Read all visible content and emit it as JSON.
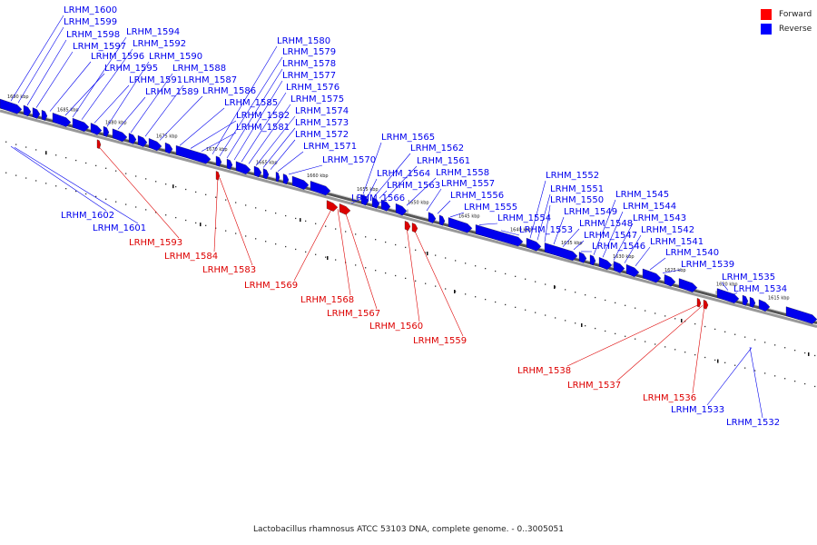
{
  "legend": [
    {
      "label": "Forward",
      "color": "#ff0000"
    },
    {
      "label": "Reverse",
      "color": "#0000ff"
    }
  ],
  "caption": "Lactobacillus rhamnosus ATCC 53103 DNA, complete genome. - 0..3005051",
  "colors": {
    "forward": "#dd0000",
    "reverse": "#0000ee",
    "backbone": "#666666"
  },
  "tick_labels": [
    "1690 kbp",
    "1685 kbp",
    "1680 kbp",
    "1675 kbp",
    "1670 kbp",
    "1665 kbp",
    "1660 kbp",
    "1655 kbp",
    "1650 kbp",
    "1645 kbp",
    "1640 kbp",
    "1635 kbp",
    "1630 kbp",
    "1625 kbp",
    "1620 kbp",
    "1615 kbp"
  ],
  "reverse_genes": [
    "LRHM_1600",
    "LRHM_1599",
    "LRHM_1598",
    "LRHM_1597",
    "LRHM_1596",
    "LRHM_1595",
    "LRHM_1594",
    "LRHM_1592",
    "LRHM_1591",
    "LRHM_1590",
    "LRHM_1589",
    "LRHM_1588",
    "LRHM_1587",
    "LRHM_1586",
    "LRHM_1585",
    "LRHM_1582",
    "LRHM_1581",
    "LRHM_1580",
    "LRHM_1579",
    "LRHM_1578",
    "LRHM_1577",
    "LRHM_1576",
    "LRHM_1575",
    "LRHM_1574",
    "LRHM_1573",
    "LRHM_1572",
    "LRHM_1571",
    "LRHM_1570",
    "LRHM_1565",
    "LRHM_1562",
    "LRHM_1561",
    "LRHM_1564",
    "LRHM_1563",
    "LRHM_1558",
    "LRHM_1566",
    "LRHM_1557",
    "LRHM_1556",
    "LRHM_1555",
    "LRHM_1554",
    "LRHM_1553",
    "LRHM_1552",
    "LRHM_1551",
    "LRHM_1550",
    "LRHM_1549",
    "LRHM_1548",
    "LRHM_1547",
    "LRHM_1546",
    "LRHM_1545",
    "LRHM_1544",
    "LRHM_1543",
    "LRHM_1542",
    "LRHM_1541",
    "LRHM_1540",
    "LRHM_1539",
    "LRHM_1535",
    "LRHM_1534"
  ],
  "lower_reverse_genes": [
    "LRHM_1602",
    "LRHM_1601",
    "LRHM_1533",
    "LRHM_1532"
  ],
  "forward_genes": [
    "LRHM_1593",
    "LRHM_1584",
    "LRHM_1583",
    "LRHM_1569",
    "LRHM_1568",
    "LRHM_1567",
    "LRHM_1560",
    "LRHM_1559",
    "LRHM_1538",
    "LRHM_1537",
    "LRHM_1536"
  ]
}
